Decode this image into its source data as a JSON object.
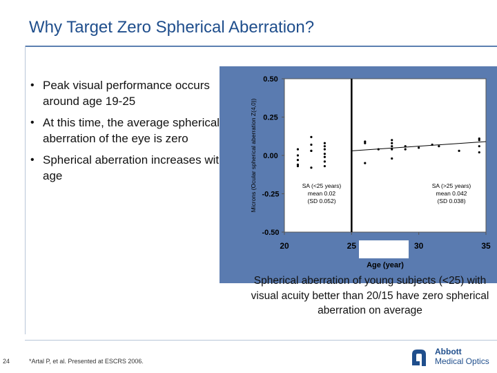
{
  "slide": {
    "title": "Why Target Zero Spherical Aberration?",
    "bullets": [
      "Peak visual performance occurs around age 19-25",
      "At this time, the average spherical aberration of the eye is zero",
      "Spherical aberration increases with age"
    ],
    "caption": "Spherical aberration of young subjects (<25) with visual acuity better than 20/15 have zero spherical aberration on average",
    "page_number": "24",
    "footnote": "*Artal P, et al. Presented at ESCRS 2006.",
    "logo": {
      "line1": "Abbott",
      "line2": "Medical Optics",
      "icon": "abbott-a-logo-icon"
    },
    "colors": {
      "title": "#1f4e8c",
      "chart_frame": "#5a7bb0",
      "ink": "#000000"
    }
  },
  "chart_data": {
    "type": "scatter",
    "title": "",
    "xlabel": "Age (year)",
    "ylabel": "Microns (Ocular spherical aberration Z(4,0))",
    "xlim": [
      20,
      35
    ],
    "ylim": [
      -0.5,
      0.5
    ],
    "x_ticks": [
      "20",
      "25",
      "30",
      "35"
    ],
    "y_ticks": [
      "0.50",
      "0.25",
      "0.00",
      "-0.25",
      "-0.50"
    ],
    "grid": false,
    "divider_x": 25,
    "annotations": [
      {
        "position": "left",
        "lines": [
          "SA (<25 years)",
          "mean 0.02",
          "(SD 0.052)"
        ]
      },
      {
        "position": "right",
        "lines": [
          "SA (>25 years)",
          "mean 0.042",
          "(SD 0.038)"
        ]
      }
    ],
    "trend_line": {
      "label": "trend (>25 years)",
      "x": [
        25,
        35
      ],
      "y": [
        0.03,
        0.09
      ]
    },
    "series": [
      {
        "name": "Subjects",
        "x": [
          21.0,
          21.0,
          21.0,
          21.0,
          21.0,
          22.0,
          22.0,
          22.0,
          22.0,
          22.0,
          23.0,
          23.0,
          23.0,
          23.0,
          23.0,
          23.0,
          23.0,
          26.0,
          26.0,
          26.0,
          27.0,
          28.0,
          28.0,
          28.0,
          28.0,
          28.0,
          29.0,
          29.0,
          30.0,
          31.0,
          31.5,
          33.0,
          34.5,
          34.5,
          34.5,
          34.5
        ],
        "y": [
          0.04,
          0.0,
          -0.03,
          -0.06,
          -0.07,
          0.12,
          0.07,
          0.03,
          0.03,
          -0.08,
          0.08,
          0.06,
          0.04,
          0.01,
          -0.01,
          -0.04,
          -0.07,
          0.09,
          0.08,
          -0.05,
          0.04,
          0.1,
          0.08,
          0.06,
          0.04,
          -0.02,
          0.06,
          0.04,
          0.05,
          0.07,
          0.06,
          0.03,
          0.11,
          0.1,
          0.06,
          0.02
        ]
      }
    ]
  }
}
